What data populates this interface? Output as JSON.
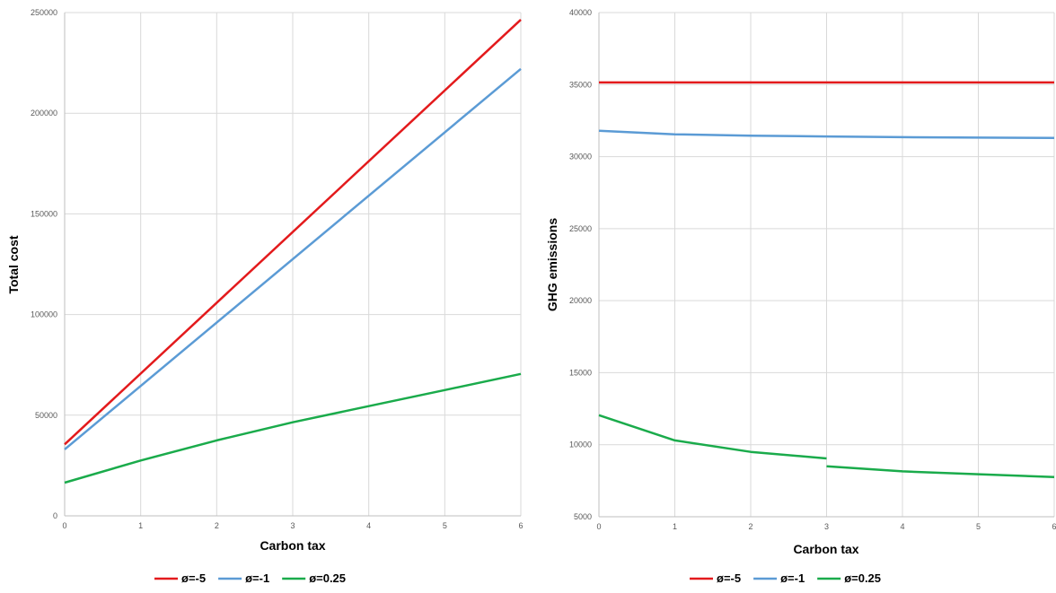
{
  "chart_data": [
    {
      "type": "line",
      "title": "",
      "xlabel": "Carbon tax",
      "ylabel": "Total cost",
      "xlim": [
        0,
        6
      ],
      "ylim": [
        0,
        250000
      ],
      "x_ticks": [
        "0",
        "1",
        "2",
        "3",
        "4",
        "5",
        "6"
      ],
      "y_ticks": [
        "0",
        "50000",
        "100000",
        "150000",
        "200000",
        "250000"
      ],
      "grid": true,
      "legend_position": "bottom",
      "series": [
        {
          "name": "ø=-5",
          "color": "#e31a1c",
          "segments": [
            {
              "x": [
                0,
                6
              ],
              "y": [
                35500,
                246500
              ]
            }
          ]
        },
        {
          "name": "ø=-1",
          "color": "#5b9bd5",
          "segments": [
            {
              "x": [
                0,
                6
              ],
              "y": [
                33000,
                222000
              ]
            }
          ]
        },
        {
          "name": "ø=0.25",
          "color": "#1aab4b",
          "segments": [
            {
              "x": [
                0,
                1,
                2,
                3,
                4,
                5,
                6
              ],
              "y": [
                16500,
                27500,
                37500,
                46500,
                54500,
                62500,
                70500
              ]
            }
          ]
        }
      ]
    },
    {
      "type": "line",
      "title": "",
      "xlabel": "Carbon tax",
      "ylabel": "GHG emissions",
      "xlim": [
        0,
        6
      ],
      "ylim": [
        5000,
        40000
      ],
      "x_ticks": [
        "0",
        "1",
        "2",
        "3",
        "4",
        "5",
        "6"
      ],
      "y_ticks": [
        "5000",
        "10000",
        "15000",
        "20000",
        "25000",
        "30000",
        "35000",
        "40000"
      ],
      "grid": true,
      "legend_position": "bottom",
      "series": [
        {
          "name": "ø=-5",
          "color": "#e31a1c",
          "segments": [
            {
              "x": [
                0,
                6
              ],
              "y": [
                35150,
                35150
              ]
            }
          ]
        },
        {
          "name": "ø=-1",
          "color": "#5b9bd5",
          "segments": [
            {
              "x": [
                0,
                1,
                2,
                3,
                4,
                5,
                6
              ],
              "y": [
                31800,
                31550,
                31450,
                31400,
                31350,
                31320,
                31300
              ]
            }
          ]
        },
        {
          "name": "ø=0.25",
          "color": "#1aab4b",
          "segments": [
            {
              "x": [
                0,
                1,
                2,
                3
              ],
              "y": [
                12050,
                10300,
                9500,
                9050
              ]
            },
            {
              "x": [
                3,
                4,
                5,
                6
              ],
              "y": [
                8500,
                8150,
                7950,
                7750
              ]
            }
          ]
        }
      ]
    }
  ]
}
